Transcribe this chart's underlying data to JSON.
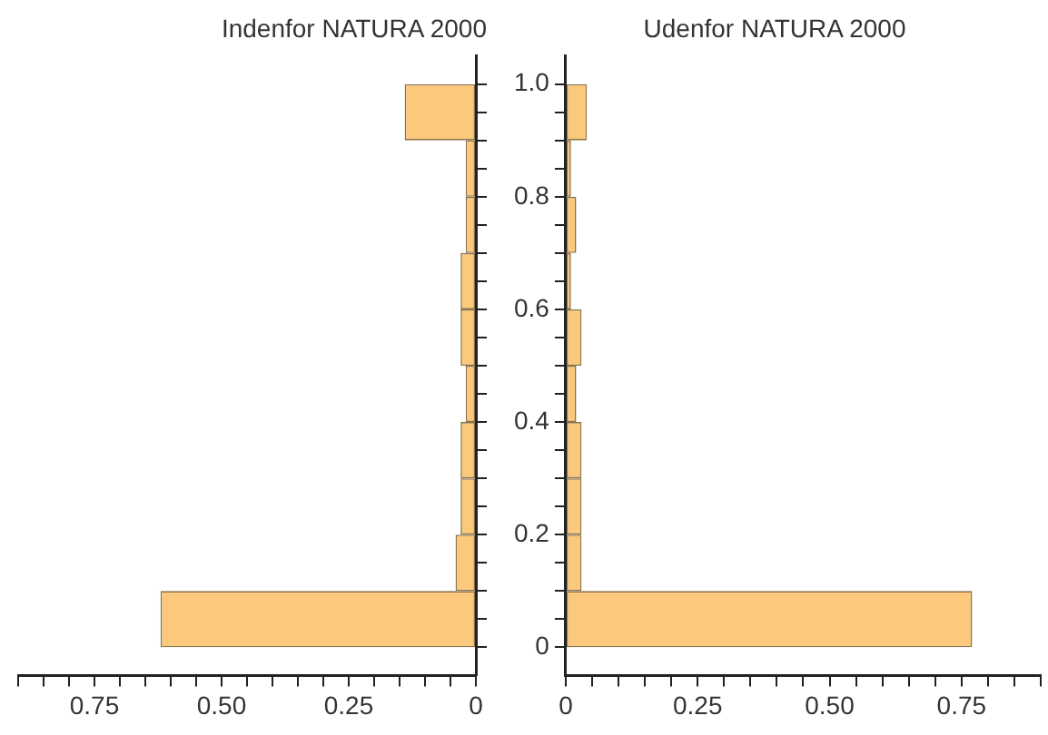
{
  "chart_data": [
    {
      "type": "histogram",
      "orientation": "horizontal",
      "title": "Indenfor NATURA 2000",
      "color": "#fcc97c",
      "bins": [
        0,
        0.1,
        0.2,
        0.3,
        0.4,
        0.5,
        0.6,
        0.7,
        0.8,
        0.9,
        1.0
      ],
      "values": [
        0.62,
        0.04,
        0.03,
        0.03,
        0.02,
        0.03,
        0.03,
        0.02,
        0.02,
        0.14
      ],
      "xlim": [
        0.9,
        0
      ],
      "xticks": [
        {
          "value": 0.9,
          "label": null
        },
        {
          "value": 0.85,
          "label": null
        },
        {
          "value": 0.8,
          "label": null
        },
        {
          "value": 0.75,
          "label": "0.75"
        },
        {
          "value": 0.7,
          "label": null
        },
        {
          "value": 0.65,
          "label": null
        },
        {
          "value": 0.6,
          "label": null
        },
        {
          "value": 0.55,
          "label": null
        },
        {
          "value": 0.5,
          "label": "0.50"
        },
        {
          "value": 0.45,
          "label": null
        },
        {
          "value": 0.4,
          "label": null
        },
        {
          "value": 0.35,
          "label": null
        },
        {
          "value": 0.3,
          "label": null
        },
        {
          "value": 0.25,
          "label": "0.25"
        },
        {
          "value": 0.2,
          "label": null
        },
        {
          "value": 0.15,
          "label": null
        },
        {
          "value": 0.1,
          "label": null
        },
        {
          "value": 0.05,
          "label": null
        },
        0
      ],
      "ylim": [
        -0.05,
        1.05
      ],
      "yticks": [
        {
          "value": 0,
          "label": null
        },
        {
          "value": 0.05,
          "label": null
        },
        {
          "value": 0.1,
          "label": null
        },
        {
          "value": 0.15,
          "label": null
        },
        {
          "value": 0.2,
          "label": null
        },
        {
          "value": 0.25,
          "label": null
        },
        {
          "value": 0.3,
          "label": null
        },
        {
          "value": 0.35,
          "label": null
        },
        {
          "value": 0.4,
          "label": null
        },
        {
          "value": 0.45,
          "label": null
        },
        {
          "value": 0.5,
          "label": null
        },
        {
          "value": 0.55,
          "label": null
        },
        {
          "value": 0.6,
          "label": null
        },
        {
          "value": 0.65,
          "label": null
        },
        {
          "value": 0.7,
          "label": null
        },
        {
          "value": 0.75,
          "label": null
        },
        {
          "value": 0.8,
          "label": null
        },
        {
          "value": 0.85,
          "label": null
        },
        {
          "value": 0.9,
          "label": null
        },
        {
          "value": 0.95,
          "label": null
        },
        {
          "value": 1.0,
          "label": null
        }
      ],
      "tick_labels": "x"
    },
    {
      "type": "histogram",
      "orientation": "horizontal",
      "title": "Udenfor NATURA 2000",
      "color": "#fcc97c",
      "bins": [
        0,
        0.1,
        0.2,
        0.3,
        0.4,
        0.5,
        0.6,
        0.7,
        0.8,
        0.9,
        1.0
      ],
      "values": [
        0.77,
        0.03,
        0.03,
        0.03,
        0.02,
        0.03,
        0.01,
        0.02,
        0.01,
        0.04
      ],
      "xlim": [
        0,
        0.9
      ],
      "xticks": [
        0,
        {
          "value": 0.05,
          "label": null
        },
        {
          "value": 0.1,
          "label": null
        },
        {
          "value": 0.15,
          "label": null
        },
        {
          "value": 0.2,
          "label": null
        },
        {
          "value": 0.25,
          "label": "0.25"
        },
        {
          "value": 0.3,
          "label": null
        },
        {
          "value": 0.35,
          "label": null
        },
        {
          "value": 0.4,
          "label": null
        },
        {
          "value": 0.45,
          "label": null
        },
        {
          "value": 0.5,
          "label": "0.50"
        },
        {
          "value": 0.55,
          "label": null
        },
        {
          "value": 0.6,
          "label": null
        },
        {
          "value": 0.65,
          "label": null
        },
        {
          "value": 0.7,
          "label": null
        },
        {
          "value": 0.75,
          "label": "0.75"
        },
        {
          "value": 0.8,
          "label": null
        },
        {
          "value": 0.85,
          "label": null
        },
        {
          "value": 0.9,
          "label": null
        }
      ],
      "ylim": [
        -0.05,
        1.05
      ],
      "yticks": [
        0,
        {
          "value": 0.05,
          "label": null
        },
        {
          "value": 0.1,
          "label": null
        },
        {
          "value": 0.15,
          "label": null
        },
        0.2,
        {
          "value": 0.25,
          "label": null
        },
        {
          "value": 0.3,
          "label": null
        },
        {
          "value": 0.35,
          "label": null
        },
        0.4,
        {
          "value": 0.45,
          "label": null
        },
        {
          "value": 0.5,
          "label": null
        },
        {
          "value": 0.55,
          "label": null
        },
        0.6,
        {
          "value": 0.65,
          "label": null
        },
        {
          "value": 0.7,
          "label": null
        },
        {
          "value": 0.75,
          "label": null
        },
        0.8,
        {
          "value": 0.85,
          "label": null
        },
        {
          "value": 0.9,
          "label": null
        },
        {
          "value": 0.95,
          "label": null
        },
        {
          "value": 1.0,
          "label": "1.0"
        }
      ]
    }
  ]
}
